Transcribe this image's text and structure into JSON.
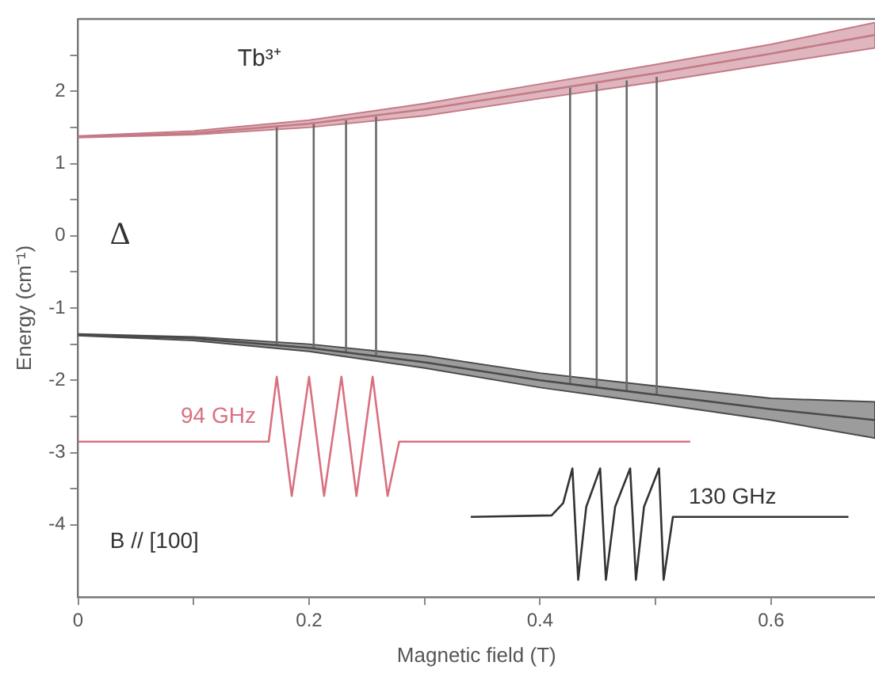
{
  "chart_data": {
    "type": "line",
    "xlabel": "Magnetic field (T)",
    "ylabel": "Energy (cm⁻¹)",
    "xlim": [
      0,
      0.69
    ],
    "ylim": [
      -5,
      3
    ],
    "xticks": [
      0,
      {
        "value": 0.1,
        "label": null
      },
      0.2,
      {
        "value": 0.3,
        "label": null
      },
      0.4,
      {
        "value": 0.5,
        "label": null
      },
      0.6
    ],
    "yticks": [
      -4,
      {
        "value": -3.5,
        "label": null
      },
      -3,
      {
        "value": -2.5,
        "label": null
      },
      -2,
      {
        "value": -1.5,
        "label": null
      },
      -1,
      {
        "value": -0.5,
        "label": null
      },
      0,
      {
        "value": 0.5,
        "label": null
      },
      1,
      {
        "value": 1.5,
        "label": null
      },
      2,
      {
        "value": 2.5,
        "label": null
      }
    ],
    "grid": false,
    "annotations": [
      "Tb³⁺",
      "Δ",
      "B // [100]"
    ],
    "series": [
      {
        "color": "#c47a86",
        "x": [
          0,
          0.1,
          0.2,
          0.3,
          0.4,
          0.5,
          0.6,
          0.69
        ],
        "values": [
          1.37,
          1.42,
          1.55,
          1.75,
          2.0,
          2.25,
          2.52,
          2.78
        ],
        "lower": [
          1.36,
          1.4,
          1.5,
          1.66,
          1.9,
          2.13,
          2.38,
          2.6
        ],
        "upper": [
          1.38,
          1.45,
          1.6,
          1.83,
          2.1,
          2.37,
          2.65,
          2.95
        ]
      },
      {
        "color": "#4a4a4a",
        "x": [
          0,
          0.1,
          0.2,
          0.3,
          0.4,
          0.5,
          0.6,
          0.69
        ],
        "values": [
          -1.37,
          -1.42,
          -1.55,
          -1.75,
          -2.0,
          -2.2,
          -2.4,
          -2.55
        ],
        "lower": [
          -1.38,
          -1.45,
          -1.6,
          -1.83,
          -2.1,
          -2.32,
          -2.55,
          -2.8
        ],
        "upper": [
          -1.36,
          -1.4,
          -1.5,
          -1.66,
          -1.9,
          -2.08,
          -2.25,
          -2.3
        ]
      },
      {
        "color": "#6a6a6a",
        "x": [
          0.172,
          0.172
        ],
        "values": [
          -1.52,
          1.52
        ]
      },
      {
        "color": "#6a6a6a",
        "x": [
          0.204,
          0.204
        ],
        "values": [
          -1.56,
          1.56
        ]
      },
      {
        "color": "#6a6a6a",
        "x": [
          0.232,
          0.232
        ],
        "values": [
          -1.6,
          1.6
        ]
      },
      {
        "color": "#6a6a6a",
        "x": [
          0.258,
          0.258
        ],
        "values": [
          -1.65,
          1.65
        ]
      },
      {
        "color": "#6a6a6a",
        "x": [
          0.426,
          0.426
        ],
        "values": [
          -2.05,
          2.05
        ]
      },
      {
        "color": "#6a6a6a",
        "x": [
          0.449,
          0.449
        ],
        "values": [
          -2.1,
          2.1
        ]
      },
      {
        "color": "#6a6a6a",
        "x": [
          0.475,
          0.475
        ],
        "values": [
          -2.15,
          2.15
        ]
      },
      {
        "color": "#6a6a6a",
        "x": [
          0.501,
          0.501
        ],
        "values": [
          -2.2,
          2.2
        ]
      },
      {
        "name": "94 GHz",
        "color": "#d9707f",
        "x": [
          0,
          0.165,
          0.172,
          0.185,
          0.2,
          0.213,
          0.228,
          0.241,
          0.255,
          0.268,
          0.278,
          0.53
        ],
        "values": [
          -2.85,
          -2.85,
          -1.95,
          -3.6,
          -1.95,
          -3.6,
          -1.95,
          -3.6,
          -1.95,
          -3.6,
          -2.85,
          -2.85
        ]
      },
      {
        "name": "130 GHz",
        "color": "#333333",
        "x": [
          0.34,
          0.41,
          0.42,
          0.428,
          0.433,
          0.44,
          0.452,
          0.457,
          0.465,
          0.478,
          0.483,
          0.49,
          0.503,
          0.507,
          0.515,
          0.667
        ],
        "values": [
          -3.89,
          -3.87,
          -3.7,
          -3.22,
          -4.76,
          -3.75,
          -3.22,
          -4.76,
          -3.75,
          -3.22,
          -4.76,
          -3.75,
          -3.22,
          -4.76,
          -3.89,
          -3.89
        ]
      }
    ]
  }
}
